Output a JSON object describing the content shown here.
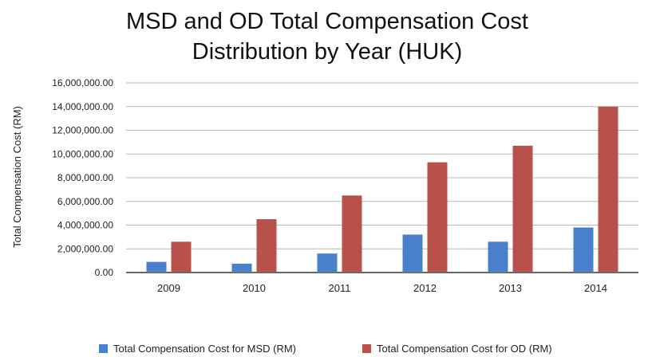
{
  "chart_data": {
    "type": "bar",
    "title": "MSD and OD Total Compensation Cost Distribution by Year (HUK)",
    "title_lines": [
      "MSD and OD Total Compensation Cost",
      "Distribution by Year (HUK)"
    ],
    "xlabel": "",
    "ylabel": "Total Compensation Cost (RM)",
    "categories": [
      "2009",
      "2010",
      "2011",
      "2012",
      "2013",
      "2014"
    ],
    "series": [
      {
        "name": "Total Compensation Cost for MSD (RM)",
        "color": "#4a7fcb",
        "values": [
          900000,
          750000,
          1600000,
          3200000,
          2600000,
          3800000
        ]
      },
      {
        "name": "Total Compensation Cost for OD (RM)",
        "color": "#b9514b",
        "values": [
          2600000,
          4500000,
          6500000,
          9300000,
          10700000,
          14000000
        ]
      }
    ],
    "ylim": [
      0,
      16000000
    ],
    "yticks": [
      0,
      2000000,
      4000000,
      6000000,
      8000000,
      10000000,
      12000000,
      14000000,
      16000000
    ],
    "ytick_labels": [
      "0.00",
      "2,000,000.00",
      "4,000,000.00",
      "6,000,000.00",
      "8,000,000.00",
      "10,000,000.00",
      "12,000,000.00",
      "14,000,000.00",
      "16,000,000.00"
    ],
    "grid": true,
    "legend_position": "bottom"
  }
}
